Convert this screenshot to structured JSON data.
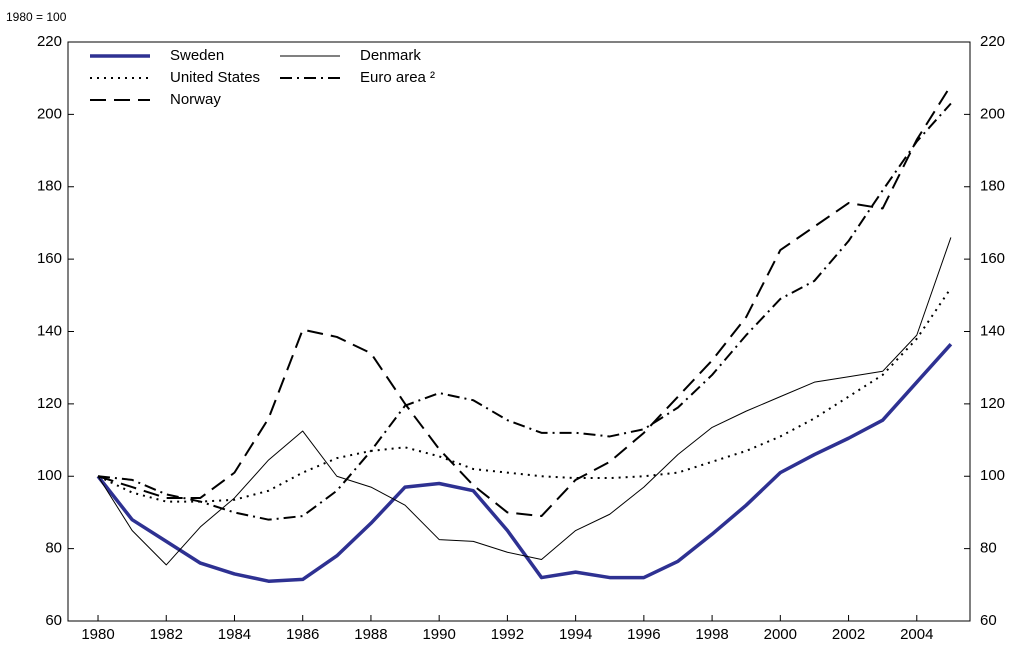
{
  "chart_data": {
    "type": "line",
    "note": "1980 = 100",
    "x": [
      1980,
      1981,
      1982,
      1983,
      1984,
      1985,
      1986,
      1987,
      1988,
      1989,
      1990,
      1991,
      1992,
      1993,
      1994,
      1995,
      1996,
      1997,
      1998,
      1999,
      2000,
      2001,
      2002,
      2003,
      2004,
      2005
    ],
    "xlim": [
      1979.12,
      2005.56
    ],
    "xticks": [
      1980,
      1982,
      1984,
      1986,
      1988,
      1990,
      1992,
      1994,
      1996,
      1998,
      2000,
      2002,
      2004
    ],
    "ylim": [
      60,
      220
    ],
    "yticks": [
      60,
      80,
      100,
      120,
      140,
      160,
      180,
      200,
      220
    ],
    "series": [
      {
        "name": "Sweden",
        "color": "#2e3192",
        "width": 3.5,
        "dash": "none",
        "values": [
          100,
          88,
          82,
          76,
          73,
          71,
          71.5,
          78,
          87,
          97,
          98,
          96,
          85,
          72,
          73.5,
          72,
          72,
          76.5,
          84,
          92,
          101,
          106,
          110.5,
          115.5,
          126,
          136.5
        ]
      },
      {
        "name": "Denmark",
        "color": "#000000",
        "width": 1,
        "dash": "none",
        "values": [
          100,
          85,
          75.5,
          86,
          94,
          104.5,
          112.5,
          100,
          97,
          92,
          82.5,
          82,
          79,
          77,
          85,
          89.5,
          97,
          106,
          113.5,
          118,
          122,
          126,
          127.5,
          129,
          139,
          166
        ]
      },
      {
        "name": "United States",
        "color": "#000000",
        "width": 2,
        "dash": "2 5",
        "values": [
          100,
          95.5,
          93,
          93,
          93.5,
          96,
          101,
          105,
          107,
          108,
          105.5,
          102,
          101,
          100,
          99.5,
          99.5,
          100,
          101,
          104,
          107,
          111,
          116,
          122,
          128,
          138,
          152
        ]
      },
      {
        "name": "Euro area ²",
        "color": "#000000",
        "width": 2,
        "dash": "12 5 2 5",
        "values": [
          100,
          99,
          95,
          93,
          90,
          88,
          89,
          96,
          107,
          119.5,
          123,
          121,
          115.5,
          112,
          112,
          111,
          113,
          119,
          128,
          139,
          149,
          154,
          165,
          179,
          192.5,
          203
        ]
      },
      {
        "name": "Norway",
        "color": "#000000",
        "width": 2,
        "dash": "16 8",
        "values": [
          100,
          97,
          94,
          94,
          101,
          116,
          140.5,
          138.5,
          134,
          120,
          107.5,
          97.5,
          90,
          89,
          99,
          104,
          112,
          122,
          132,
          144,
          162.5,
          169,
          175.5,
          174,
          193,
          208
        ]
      }
    ]
  }
}
